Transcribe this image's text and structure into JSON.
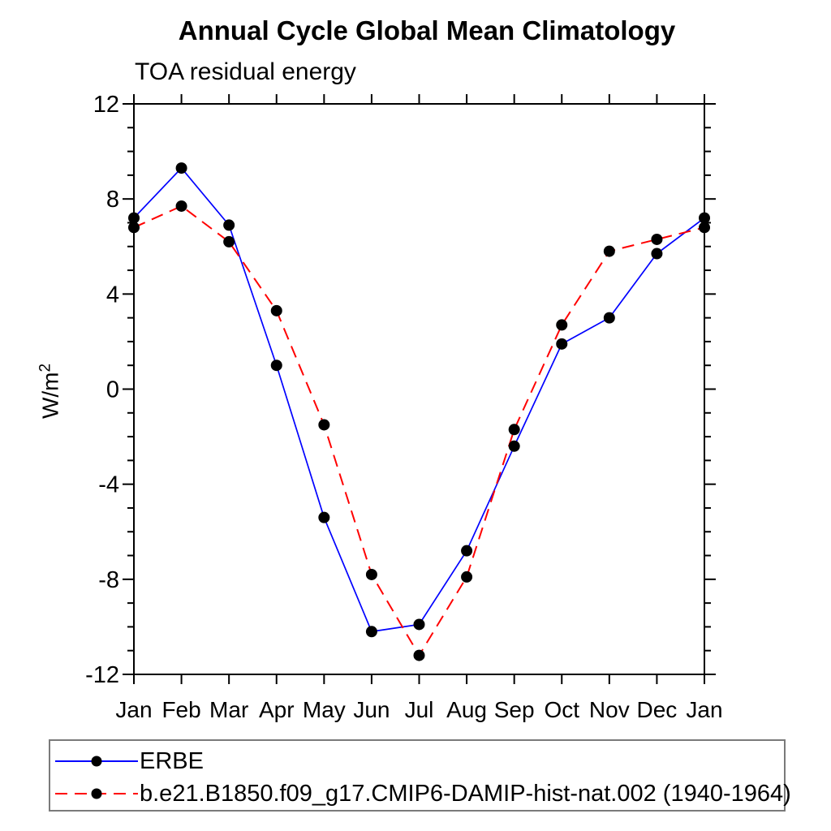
{
  "chart_data": {
    "type": "line",
    "title": "Annual Cycle Global Mean Climatology",
    "subtitle": "TOA residual energy",
    "ylabel": "W/m²",
    "ylabel_parts": {
      "base": "W/m",
      "sup": "2"
    },
    "xlabel": "",
    "categories": [
      "Jan",
      "Feb",
      "Mar",
      "Apr",
      "May",
      "Jun",
      "Jul",
      "Aug",
      "Sep",
      "Oct",
      "Nov",
      "Dec",
      "Jan"
    ],
    "ylim": [
      -12,
      12
    ],
    "ytick_major": [
      12,
      8,
      4,
      0,
      -4,
      -8,
      -12
    ],
    "ytick_minor_step": 1,
    "grid": false,
    "legend_position": "bottom-left-box",
    "axis_color": "#000000",
    "marker_color": "#000000",
    "series": [
      {
        "name": "ERBE",
        "color": "#0000ff",
        "line_style": "solid",
        "marker": "circle",
        "values": [
          7.2,
          9.3,
          6.9,
          1.0,
          -5.4,
          -10.2,
          -9.9,
          -6.8,
          -2.4,
          1.9,
          3.0,
          5.7,
          7.2
        ]
      },
      {
        "name": "b.e21.B1850.f09_g17.CMIP6-DAMIP-hist-nat.002 (1940-1964)",
        "color": "#ff0000",
        "line_style": "dashed",
        "marker": "circle",
        "values": [
          6.8,
          7.7,
          6.2,
          3.3,
          -1.5,
          -7.8,
          -11.2,
          -7.9,
          -1.7,
          2.7,
          5.8,
          6.3,
          6.8
        ]
      }
    ]
  }
}
